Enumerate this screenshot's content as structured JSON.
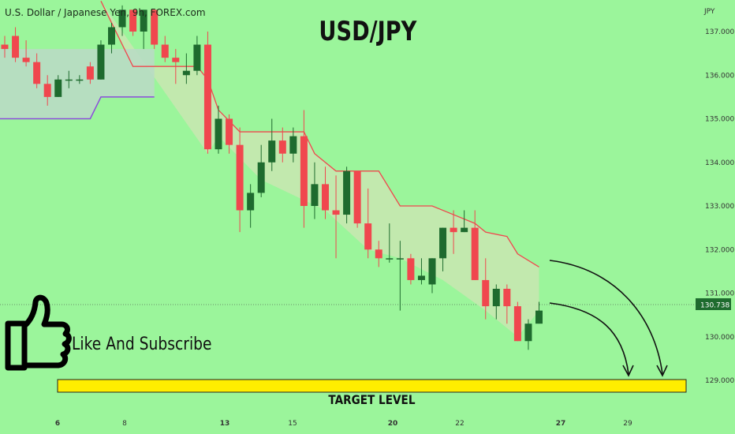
{
  "header": {
    "symbol_text": "U.S. Dollar / Japanese Yen, 9h, FOREX.com"
  },
  "title": "USD/JPY",
  "cta": {
    "text": "Like And Subscribe"
  },
  "target": {
    "label": "TARGET LEVEL",
    "price": 128.9,
    "color": "#ffee00"
  },
  "colors": {
    "bull": "#1e6b2e",
    "bear": "#f0474e",
    "upper_band": "#f0474e",
    "lower_band": "#8b4ddb",
    "fill": "#c6e8b0"
  },
  "chart_data": {
    "type": "candlestick",
    "currency_label": "JPY",
    "y_ticks": [
      "137.000",
      "136.000",
      "135.000",
      "134.000",
      "133.000",
      "132.000",
      "131.000",
      "130.000",
      "129.000"
    ],
    "y_range": [
      128.4,
      137.5
    ],
    "last_price": "130.738",
    "x_ticks": [
      {
        "label": "6",
        "bold": true
      },
      {
        "label": "8",
        "bold": false
      },
      {
        "label": "13",
        "bold": true
      },
      {
        "label": "15",
        "bold": false
      },
      {
        "label": "20",
        "bold": true
      },
      {
        "label": "22",
        "bold": false
      },
      {
        "label": "27",
        "bold": true
      },
      {
        "label": "29",
        "bold": false
      }
    ],
    "candles": [
      [
        136.7,
        136.9,
        136.4,
        136.6
      ],
      [
        136.9,
        137.1,
        136.3,
        136.4
      ],
      [
        136.4,
        136.8,
        136.2,
        136.3
      ],
      [
        136.3,
        136.5,
        135.7,
        135.8
      ],
      [
        135.8,
        136.0,
        135.3,
        135.5
      ],
      [
        135.5,
        136.0,
        135.5,
        135.9
      ],
      [
        135.9,
        136.1,
        135.7,
        135.9
      ],
      [
        135.9,
        136.0,
        135.8,
        135.9
      ],
      [
        136.2,
        136.3,
        135.8,
        135.9
      ],
      [
        135.9,
        136.8,
        135.9,
        136.7
      ],
      [
        136.7,
        137.2,
        136.5,
        137.1
      ],
      [
        137.1,
        137.6,
        136.9,
        137.5
      ],
      [
        137.5,
        137.5,
        136.9,
        137.0
      ],
      [
        137.0,
        137.5,
        136.6,
        137.5
      ],
      [
        137.5,
        137.5,
        136.6,
        136.7
      ],
      [
        136.7,
        136.9,
        136.3,
        136.4
      ],
      [
        136.4,
        136.6,
        135.8,
        136.3
      ],
      [
        136.0,
        136.5,
        135.8,
        136.1
      ],
      [
        136.1,
        136.9,
        136.0,
        136.7
      ],
      [
        136.7,
        137.0,
        134.2,
        134.3
      ],
      [
        134.3,
        135.3,
        134.2,
        135.0
      ],
      [
        135.0,
        135.1,
        134.2,
        134.4
      ],
      [
        134.4,
        134.8,
        132.4,
        132.9
      ],
      [
        132.9,
        133.5,
        132.5,
        133.3
      ],
      [
        133.3,
        134.4,
        133.2,
        134.0
      ],
      [
        134.0,
        135.0,
        133.8,
        134.5
      ],
      [
        134.5,
        134.8,
        134.0,
        134.2
      ],
      [
        134.2,
        134.8,
        134.0,
        134.6
      ],
      [
        134.6,
        135.2,
        132.5,
        133.0
      ],
      [
        133.0,
        134.0,
        132.7,
        133.5
      ],
      [
        133.5,
        133.9,
        132.7,
        132.9
      ],
      [
        132.9,
        133.7,
        131.8,
        132.8
      ],
      [
        132.8,
        133.9,
        132.6,
        133.8
      ],
      [
        133.8,
        133.8,
        132.5,
        132.6
      ],
      [
        132.6,
        133.4,
        131.8,
        132.0
      ],
      [
        132.0,
        132.2,
        131.6,
        131.8
      ],
      [
        131.8,
        132.6,
        131.7,
        131.8
      ],
      [
        131.8,
        132.2,
        130.6,
        131.8
      ],
      [
        131.8,
        131.9,
        131.2,
        131.3
      ],
      [
        131.3,
        131.8,
        131.2,
        131.4
      ],
      [
        131.2,
        131.8,
        131.0,
        131.8
      ],
      [
        131.8,
        132.5,
        131.5,
        132.5
      ],
      [
        132.5,
        132.9,
        131.9,
        132.4
      ],
      [
        132.4,
        132.9,
        132.4,
        132.5
      ],
      [
        132.5,
        132.9,
        131.3,
        131.3
      ],
      [
        131.3,
        131.8,
        130.4,
        130.7
      ],
      [
        130.7,
        131.2,
        130.4,
        131.1
      ],
      [
        131.1,
        131.2,
        130.3,
        130.7
      ],
      [
        130.7,
        130.8,
        129.9,
        129.9
      ],
      [
        129.9,
        130.4,
        129.7,
        130.3
      ],
      [
        130.3,
        130.8,
        130.3,
        130.6
      ]
    ],
    "upper_band": [
      [
        9,
        137.7
      ],
      [
        10,
        137.2
      ],
      [
        11,
        136.7
      ],
      [
        12,
        136.2
      ],
      [
        18,
        136.2
      ],
      [
        19,
        135.9
      ],
      [
        20,
        135.2
      ],
      [
        22,
        134.7
      ],
      [
        28,
        134.7
      ],
      [
        29,
        134.2
      ],
      [
        31,
        133.8
      ],
      [
        35,
        133.8
      ],
      [
        36,
        133.4
      ],
      [
        37,
        133.0
      ],
      [
        40,
        133.0
      ],
      [
        42,
        132.8
      ],
      [
        44,
        132.6
      ],
      [
        45,
        132.4
      ],
      [
        47,
        132.3
      ],
      [
        48,
        131.9
      ],
      [
        50,
        131.6
      ]
    ],
    "lower_band": [
      [
        -1,
        135.0
      ],
      [
        8,
        135.0
      ],
      [
        9,
        135.5
      ],
      [
        14,
        135.5
      ]
    ]
  }
}
